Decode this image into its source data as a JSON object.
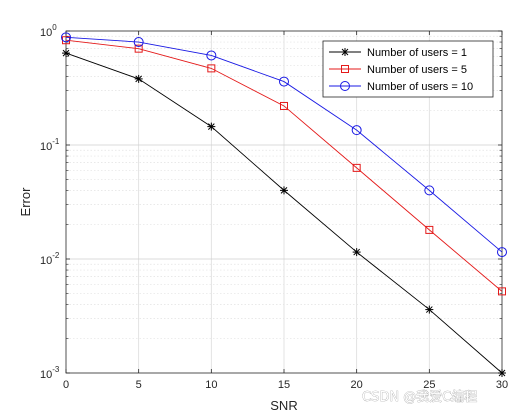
{
  "chart_data": {
    "type": "line",
    "title": "",
    "xlabel": "SNR",
    "ylabel": "Error",
    "xlim": [
      0,
      30
    ],
    "ylim": [
      0.001,
      1
    ],
    "yscale": "log",
    "grid": true,
    "legend_position": "top-right",
    "x_ticks": [
      "0",
      "5",
      "10",
      "15",
      "20",
      "25",
      "30"
    ],
    "y_ticks": [
      {
        "base": "10",
        "exp": "0",
        "value": 1
      },
      {
        "base": "10",
        "exp": "-1",
        "value": 0.1
      },
      {
        "base": "10",
        "exp": "-2",
        "value": 0.01
      },
      {
        "base": "10",
        "exp": "-3",
        "value": 0.001
      }
    ],
    "x": [
      0,
      5,
      10,
      15,
      20,
      25,
      30
    ],
    "series": [
      {
        "name": "Number of users = 1",
        "color": "#000000",
        "marker": "asterisk",
        "values": [
          0.64,
          0.38,
          0.145,
          0.04,
          0.0115,
          0.0036,
          0.001
        ]
      },
      {
        "name": "Number of users = 5",
        "color": "#e41a1a",
        "marker": "square",
        "values": [
          0.83,
          0.7,
          0.47,
          0.22,
          0.063,
          0.018,
          0.0052
        ]
      },
      {
        "name": "Number of users = 10",
        "color": "#1a1ae4",
        "marker": "circle",
        "values": [
          0.88,
          0.8,
          0.61,
          0.36,
          0.135,
          0.04,
          0.0115
        ]
      }
    ]
  },
  "watermark": "CSDN @我爱C编程"
}
